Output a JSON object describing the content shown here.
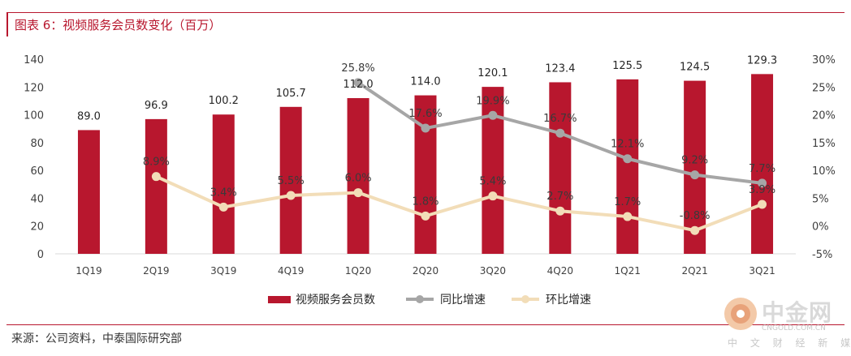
{
  "title": "图表 6：视频服务会员数变化（百万）",
  "source": "来源：公司资料，中泰国际研究部",
  "watermark": {
    "name_cn": "中金网",
    "domain": "CNGOLD.COM.CN",
    "tagline": "中 文 财 经 新 媒 体"
  },
  "colors": {
    "bar": "#b8172e",
    "yoy": "#a6a6a6",
    "qoq": "#f2ddb8",
    "title": "#b8172e"
  },
  "chart_data": {
    "type": "bar",
    "categories": [
      "1Q19",
      "2Q19",
      "3Q19",
      "4Q19",
      "1Q20",
      "2Q20",
      "3Q20",
      "4Q20",
      "1Q21",
      "2Q21",
      "3Q21"
    ],
    "bar_series": {
      "name": "视频服务会员数",
      "values": [
        89.0,
        96.9,
        100.2,
        105.7,
        112.0,
        114.0,
        120.1,
        123.4,
        125.5,
        124.5,
        129.3
      ],
      "labels": [
        "89.0",
        "96.9",
        "100.2",
        "105.7",
        "112.0",
        "114.0",
        "120.1",
        "123.4",
        "125.5",
        "124.5",
        "129.3"
      ]
    },
    "line_series": [
      {
        "name": "同比增速",
        "values": [
          null,
          null,
          null,
          null,
          25.8,
          17.6,
          19.9,
          16.7,
          12.1,
          9.2,
          7.7
        ],
        "labels": [
          "",
          "",
          "",
          "",
          "25.8%",
          "17.6%",
          "19.9%",
          "16.7%",
          "12.1%",
          "9.2%",
          "7.7%"
        ]
      },
      {
        "name": "环比增速",
        "values": [
          null,
          8.9,
          3.4,
          5.5,
          6.0,
          1.8,
          5.4,
          2.7,
          1.7,
          -0.8,
          3.9
        ],
        "labels": [
          "",
          "8.9%",
          "3.4%",
          "5.5%",
          "6.0%",
          "1.8%",
          "5.4%",
          "2.7%",
          "1.7%",
          "-0.8%",
          "3.9%"
        ]
      }
    ],
    "ylim_left": [
      0,
      140
    ],
    "yticks_left": [
      "0",
      "20",
      "40",
      "60",
      "80",
      "100",
      "120",
      "140"
    ],
    "ylim_right": [
      -5,
      30
    ],
    "yticks_right": [
      "-5%",
      "0%",
      "5%",
      "10%",
      "15%",
      "20%",
      "25%",
      "30%"
    ],
    "legend_position": "bottom",
    "grid": false
  }
}
